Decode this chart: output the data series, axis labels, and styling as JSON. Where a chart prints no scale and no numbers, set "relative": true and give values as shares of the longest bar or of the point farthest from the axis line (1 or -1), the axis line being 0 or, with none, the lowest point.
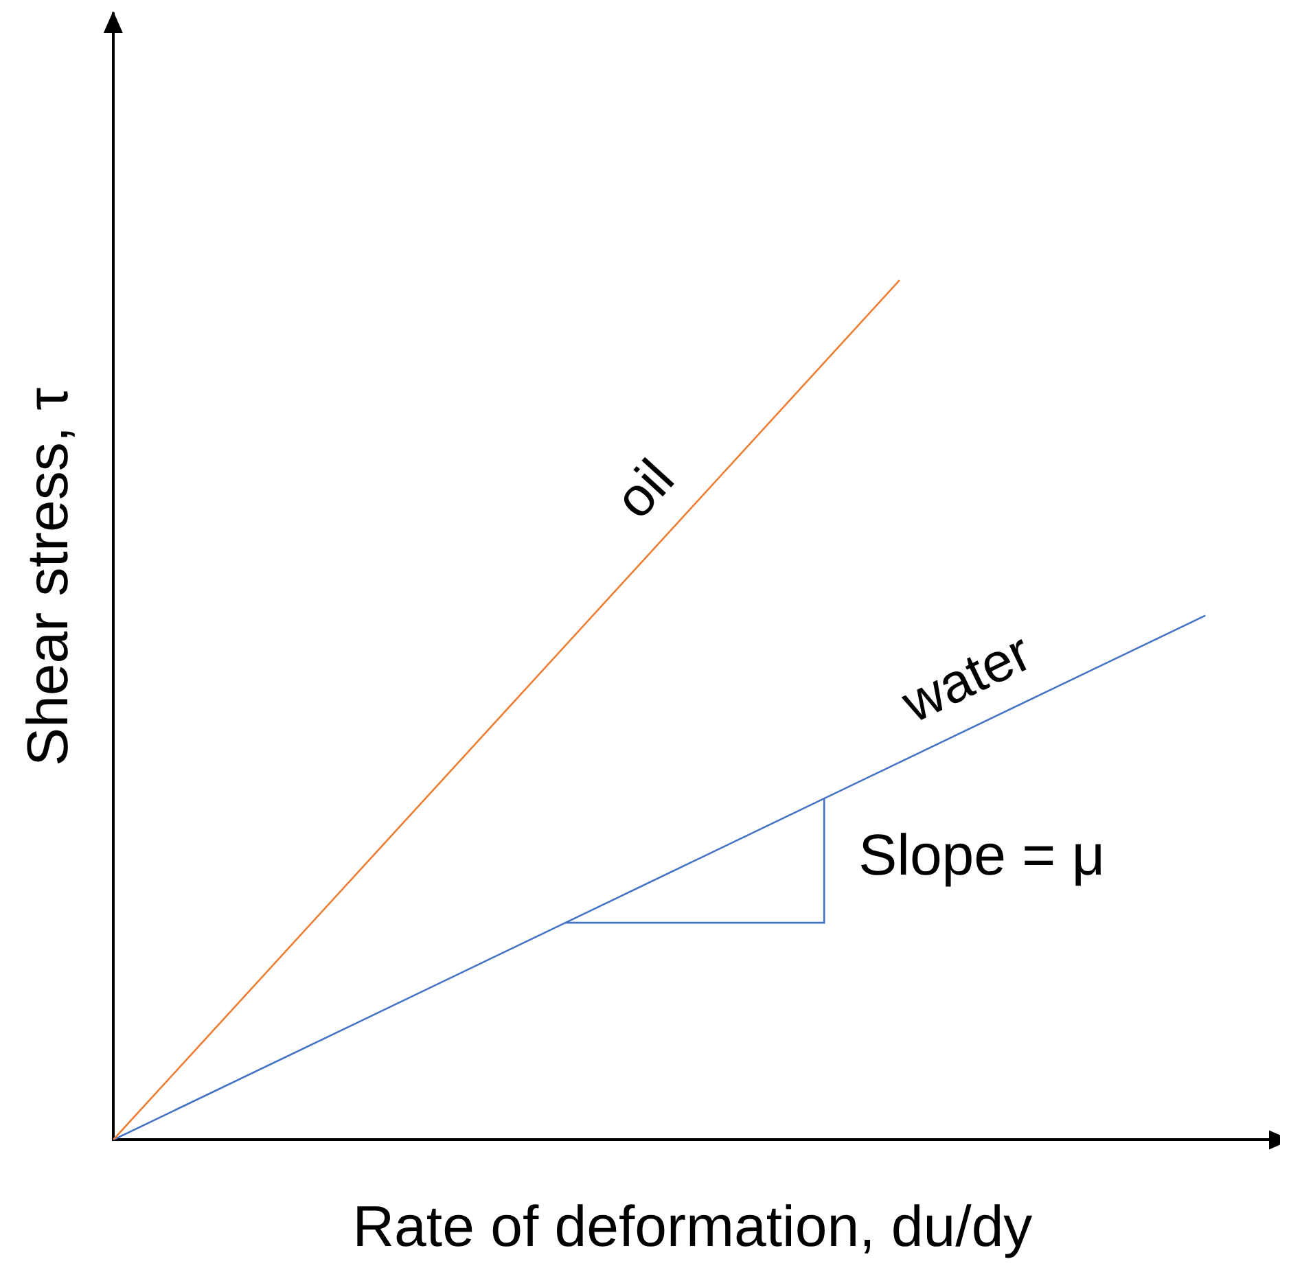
{
  "chart_data": {
    "type": "line",
    "xlabel": "Rate of deformation, du/dy",
    "ylabel": "Shear stress, τ",
    "relative": true,
    "grid": false,
    "legend": false,
    "marker": "none",
    "line_style": "solid",
    "categories": [
      null,
      null,
      null,
      null,
      null,
      null,
      null,
      null,
      null,
      null,
      null,
      null,
      null,
      null,
      null,
      null,
      null,
      null,
      null,
      null,
      null,
      null,
      null,
      null,
      null,
      null,
      null
    ],
    "series": [
      {
        "name": "oil",
        "color": "#ed7d31",
        "values": [
          0,
          null,
          null,
          null,
          null,
          null,
          null,
          null,
          null,
          null,
          null,
          null,
          null,
          null,
          null,
          null,
          null,
          null,
          1,
          null,
          null,
          null,
          null,
          null,
          null,
          null,
          null
        ]
      },
      {
        "name": "water",
        "color": "#4472c4",
        "values": [
          0,
          null,
          null,
          null,
          null,
          null,
          null,
          null,
          null,
          null,
          null,
          null,
          null,
          null,
          null,
          null,
          null,
          null,
          null,
          null,
          null,
          null,
          null,
          null,
          null,
          0.61,
          null
        ]
      }
    ],
    "annotations": [
      "Slope = μ"
    ]
  }
}
